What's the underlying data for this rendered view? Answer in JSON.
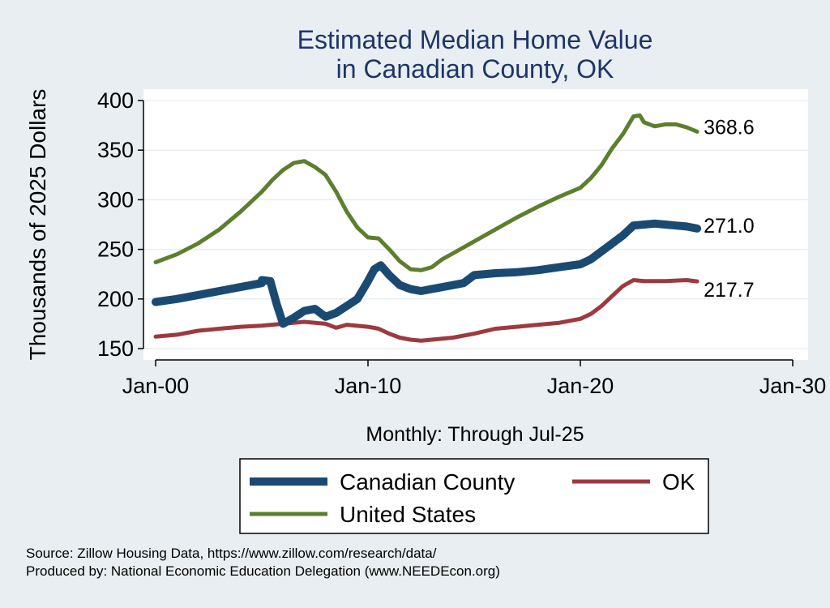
{
  "chart_data": {
    "type": "line",
    "title": [
      "Estimated Median Home Value",
      "in Canadian County, OK"
    ],
    "ylabel": "Thousands of 2025 Dollars",
    "xlabel": "Monthly: Through Jul-25",
    "ylim": [
      140,
      410
    ],
    "xlim": [
      2000.0,
      2030.0
    ],
    "yticks": [
      150,
      200,
      250,
      300,
      350,
      400
    ],
    "xticks": [
      {
        "value": 2000,
        "label": "Jan-00"
      },
      {
        "value": 2010,
        "label": "Jan-10"
      },
      {
        "value": 2020,
        "label": "Jan-20"
      },
      {
        "value": 2030,
        "label": "Jan-30"
      }
    ],
    "grid": true,
    "series": [
      {
        "name": "Canadian County",
        "color": "#1a4a72",
        "end_label": "271.0",
        "points": [
          [
            2000.0,
            197
          ],
          [
            2001.0,
            200
          ],
          [
            2002.0,
            204
          ],
          [
            2003.0,
            208
          ],
          [
            2004.0,
            212
          ],
          [
            2005.0,
            216
          ],
          [
            2005.0,
            219
          ],
          [
            2005.4,
            218
          ],
          [
            2005.7,
            195
          ],
          [
            2006.0,
            175
          ],
          [
            2006.5,
            181
          ],
          [
            2007.0,
            188
          ],
          [
            2007.5,
            190
          ],
          [
            2008.0,
            182
          ],
          [
            2008.5,
            186
          ],
          [
            2009.0,
            193
          ],
          [
            2009.5,
            200
          ],
          [
            2010.0,
            218
          ],
          [
            2010.3,
            230
          ],
          [
            2010.6,
            234
          ],
          [
            2011.0,
            224
          ],
          [
            2011.5,
            214
          ],
          [
            2012.0,
            210
          ],
          [
            2012.5,
            208
          ],
          [
            2013.0,
            210
          ],
          [
            2014.0,
            214
          ],
          [
            2014.5,
            216
          ],
          [
            2015.0,
            224
          ],
          [
            2016.0,
            226
          ],
          [
            2017.0,
            227
          ],
          [
            2018.0,
            229
          ],
          [
            2019.0,
            232
          ],
          [
            2020.0,
            235
          ],
          [
            2020.5,
            240
          ],
          [
            2021.0,
            248
          ],
          [
            2021.5,
            256
          ],
          [
            2022.0,
            264
          ],
          [
            2022.5,
            274
          ],
          [
            2023.0,
            275
          ],
          [
            2023.5,
            276
          ],
          [
            2024.0,
            275
          ],
          [
            2024.5,
            274
          ],
          [
            2025.0,
            273
          ],
          [
            2025.5,
            271
          ]
        ]
      },
      {
        "name": "OK",
        "color": "#9c3a40",
        "end_label": "217.7",
        "points": [
          [
            2000.0,
            162
          ],
          [
            2001.0,
            164
          ],
          [
            2002.0,
            168
          ],
          [
            2003.0,
            170
          ],
          [
            2004.0,
            172
          ],
          [
            2005.0,
            173
          ],
          [
            2006.0,
            175
          ],
          [
            2007.0,
            177
          ],
          [
            2008.0,
            175
          ],
          [
            2008.5,
            171
          ],
          [
            2009.0,
            174
          ],
          [
            2010.0,
            172
          ],
          [
            2010.5,
            170
          ],
          [
            2011.0,
            165
          ],
          [
            2011.5,
            161
          ],
          [
            2012.0,
            159
          ],
          [
            2012.5,
            158
          ],
          [
            2013.0,
            159
          ],
          [
            2014.0,
            161
          ],
          [
            2015.0,
            165
          ],
          [
            2016.0,
            170
          ],
          [
            2017.0,
            172
          ],
          [
            2018.0,
            174
          ],
          [
            2019.0,
            176
          ],
          [
            2020.0,
            180
          ],
          [
            2020.5,
            185
          ],
          [
            2021.0,
            193
          ],
          [
            2021.5,
            203
          ],
          [
            2022.0,
            213
          ],
          [
            2022.5,
            219
          ],
          [
            2023.0,
            218
          ],
          [
            2024.0,
            218
          ],
          [
            2025.0,
            219
          ],
          [
            2025.5,
            217.7
          ]
        ]
      },
      {
        "name": "United States",
        "color": "#5c7f2e",
        "end_label": "368.6",
        "points": [
          [
            2000.0,
            237
          ],
          [
            2001.0,
            245
          ],
          [
            2002.0,
            256
          ],
          [
            2003.0,
            270
          ],
          [
            2004.0,
            288
          ],
          [
            2005.0,
            308
          ],
          [
            2005.5,
            320
          ],
          [
            2006.0,
            330
          ],
          [
            2006.5,
            337
          ],
          [
            2007.0,
            339
          ],
          [
            2007.5,
            333
          ],
          [
            2008.0,
            325
          ],
          [
            2008.5,
            308
          ],
          [
            2009.0,
            288
          ],
          [
            2009.5,
            272
          ],
          [
            2010.0,
            262
          ],
          [
            2010.5,
            261
          ],
          [
            2011.0,
            250
          ],
          [
            2011.5,
            238
          ],
          [
            2012.0,
            230
          ],
          [
            2012.5,
            229
          ],
          [
            2013.0,
            232
          ],
          [
            2013.5,
            240
          ],
          [
            2014.0,
            246
          ],
          [
            2014.5,
            252
          ],
          [
            2015.0,
            258
          ],
          [
            2016.0,
            270
          ],
          [
            2017.0,
            282
          ],
          [
            2018.0,
            293
          ],
          [
            2019.0,
            303
          ],
          [
            2020.0,
            312
          ],
          [
            2020.5,
            322
          ],
          [
            2021.0,
            335
          ],
          [
            2021.5,
            352
          ],
          [
            2022.0,
            366
          ],
          [
            2022.5,
            384
          ],
          [
            2022.8,
            385
          ],
          [
            2023.0,
            378
          ],
          [
            2023.5,
            374
          ],
          [
            2024.0,
            376
          ],
          [
            2024.5,
            376
          ],
          [
            2025.0,
            373
          ],
          [
            2025.5,
            368.6
          ]
        ]
      }
    ],
    "legend": {
      "position": "bottom",
      "entries": [
        "Canadian County",
        "OK",
        "United States"
      ]
    },
    "source_lines": [
      "Source: Zillow Housing Data, https://www.zillow.com/research/data/",
      "Produced by: National Economic Education Delegation (www.NEEDEcon.org)"
    ]
  }
}
